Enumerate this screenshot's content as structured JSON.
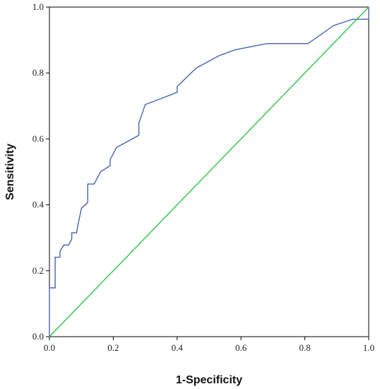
{
  "chart_data": {
    "type": "line",
    "title": "",
    "xlabel": "1-Specificity",
    "ylabel": "Sensitivity",
    "xlim": [
      0,
      1
    ],
    "ylim": [
      0,
      1
    ],
    "x_ticks": [
      "0.0",
      "0.2",
      "0.4",
      "0.6",
      "0.8",
      "1.0"
    ],
    "y_ticks": [
      "0.0",
      "0.2",
      "0.4",
      "0.6",
      "0.8",
      "1.0"
    ],
    "grid": false,
    "legend": "none",
    "series": [
      {
        "color": "#4a63b0",
        "x": [
          0,
          0,
          0.018,
          0.018,
          0.033,
          0.033,
          0.045,
          0.06,
          0.07,
          0.07,
          0.085,
          0.088,
          0.1,
          0.12,
          0.12,
          0.14,
          0.16,
          0.19,
          0.19,
          0.21,
          0.28,
          0.28,
          0.3,
          0.4,
          0.4,
          0.46,
          0.53,
          0.58,
          0.68,
          0.81,
          0.89,
          0.95,
          0.96,
          1.0,
          1.0
        ],
        "y": [
          0,
          0.148,
          0.148,
          0.241,
          0.241,
          0.259,
          0.278,
          0.278,
          0.296,
          0.315,
          0.315,
          0.333,
          0.389,
          0.407,
          0.463,
          0.463,
          0.5,
          0.519,
          0.537,
          0.574,
          0.611,
          0.648,
          0.704,
          0.741,
          0.759,
          0.815,
          0.852,
          0.87,
          0.889,
          0.889,
          0.944,
          0.963,
          0.963,
          0.963,
          1.0
        ]
      },
      {
        "color": "#2ec24a",
        "x": [
          0,
          1
        ],
        "y": [
          0,
          1
        ]
      }
    ]
  },
  "colors": {
    "roc_curve": "#4a63b0",
    "reference_line": "#2ec24a",
    "axis": "#000000"
  }
}
